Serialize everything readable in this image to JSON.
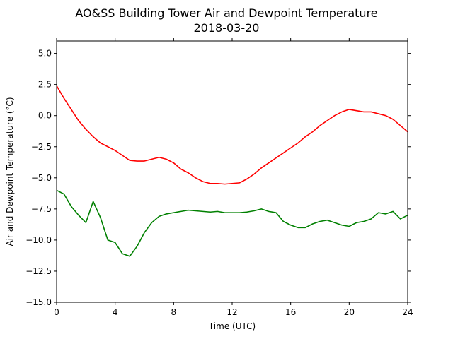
{
  "chart_data": {
    "type": "line",
    "title": "AO&SS Building Tower Air and Dewpoint Temperature",
    "subtitle": "2018-03-20",
    "xlabel": "Time (UTC)",
    "ylabel": "Air and Dewpoint Temperature (°C)",
    "xlim": [
      0,
      24
    ],
    "ylim": [
      -15.0,
      6.0
    ],
    "xticks": [
      0,
      4,
      8,
      12,
      16,
      20,
      24
    ],
    "yticks": [
      -15.0,
      -12.5,
      -10.0,
      -7.5,
      -5.0,
      -2.5,
      0.0,
      2.5,
      5.0
    ],
    "ytick_labels": [
      "−15.0",
      "−12.5",
      "−10.0",
      "−7.5",
      "−5.0",
      "−2.5",
      "0.0",
      "2.5",
      "5.0"
    ],
    "grid": false,
    "series": [
      {
        "color": "#ff0000",
        "x": [
          0,
          0.5,
          1,
          1.5,
          2,
          2.5,
          3,
          3.5,
          4,
          4.5,
          5,
          5.5,
          6,
          6.5,
          7,
          7.5,
          8,
          8.5,
          9,
          9.5,
          10,
          10.5,
          11,
          11.5,
          12,
          12.5,
          13,
          13.5,
          14,
          14.5,
          15,
          15.5,
          16,
          16.5,
          17,
          17.5,
          18,
          18.5,
          19,
          19.5,
          20,
          20.5,
          21,
          21.5,
          22,
          22.5,
          23,
          23.5,
          24
        ],
        "y": [
          2.4,
          1.4,
          0.5,
          -0.4,
          -1.1,
          -1.7,
          -2.2,
          -2.5,
          -2.8,
          -3.2,
          -3.6,
          -3.65,
          -3.65,
          -3.5,
          -3.35,
          -3.5,
          -3.8,
          -4.3,
          -4.6,
          -5.0,
          -5.3,
          -5.45,
          -5.45,
          -5.5,
          -5.45,
          -5.4,
          -5.1,
          -4.7,
          -4.2,
          -3.8,
          -3.4,
          -3.0,
          -2.6,
          -2.2,
          -1.7,
          -1.3,
          -0.8,
          -0.4,
          0.0,
          0.3,
          0.5,
          0.4,
          0.3,
          0.3,
          0.15,
          0.0,
          -0.3,
          -0.8,
          -1.3
        ]
      },
      {
        "color": "#008000",
        "x": [
          0,
          0.5,
          1,
          1.5,
          2,
          2.5,
          3,
          3.5,
          4,
          4.5,
          5,
          5.5,
          6,
          6.5,
          7,
          7.5,
          8,
          8.5,
          9,
          9.5,
          10,
          10.5,
          11,
          11.5,
          12,
          12.5,
          13,
          13.5,
          14,
          14.5,
          15,
          15.5,
          16,
          16.5,
          17,
          17.5,
          18,
          18.5,
          19,
          19.5,
          20,
          20.5,
          21,
          21.5,
          22,
          22.5,
          23,
          23.5,
          24
        ],
        "y": [
          -6.0,
          -6.3,
          -7.3,
          -8.0,
          -8.6,
          -6.9,
          -8.2,
          -10.0,
          -10.2,
          -11.1,
          -11.3,
          -10.5,
          -9.4,
          -8.6,
          -8.1,
          -7.9,
          -7.8,
          -7.7,
          -7.6,
          -7.65,
          -7.7,
          -7.75,
          -7.7,
          -7.8,
          -7.8,
          -7.8,
          -7.75,
          -7.65,
          -7.5,
          -7.7,
          -7.8,
          -8.5,
          -8.8,
          -9.0,
          -9.0,
          -8.7,
          -8.5,
          -8.4,
          -8.6,
          -8.8,
          -8.9,
          -8.6,
          -8.5,
          -8.3,
          -7.8,
          -7.9,
          -7.7,
          -8.3,
          -8.0
        ]
      }
    ]
  }
}
